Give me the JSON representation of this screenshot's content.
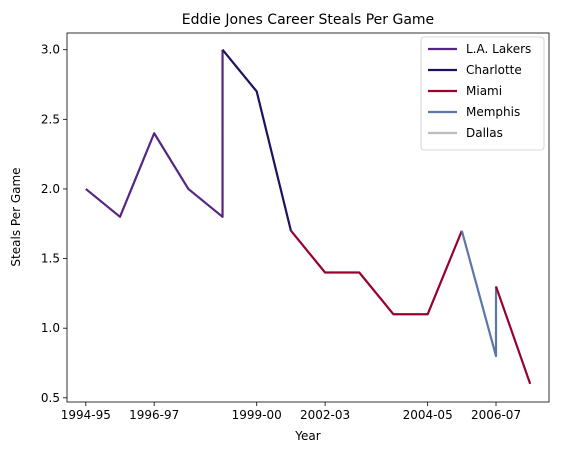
{
  "chart_data": {
    "type": "line",
    "title": "Eddie Jones  Career Steals Per Game",
    "xlabel": "Year",
    "ylabel": "Steals Per Game",
    "xlim": [
      -0.55,
      13.55
    ],
    "ylim": [
      0.47,
      3.12
    ],
    "x_ticks": [
      {
        "pos": 0,
        "label": "1994-95"
      },
      {
        "pos": 2,
        "label": "1996-97"
      },
      {
        "pos": 5,
        "label": "1999-00"
      },
      {
        "pos": 7,
        "label": "2002-03"
      },
      {
        "pos": 10,
        "label": "2004-05"
      },
      {
        "pos": 12,
        "label": "2006-07"
      }
    ],
    "y_ticks": [
      {
        "value": 0.5,
        "label": "0.5"
      },
      {
        "value": 1.0,
        "label": "1.0"
      },
      {
        "value": 1.5,
        "label": "1.5"
      },
      {
        "value": 2.0,
        "label": "2.0"
      },
      {
        "value": 2.5,
        "label": "2.5"
      },
      {
        "value": 3.0,
        "label": "3.0"
      }
    ],
    "grid": false,
    "legend_position": "top-right",
    "series": [
      {
        "name": "L.A. Lakers",
        "color": "#552583",
        "points": [
          [
            0,
            2.0
          ],
          [
            1,
            1.8
          ],
          [
            2,
            2.4
          ],
          [
            3,
            2.0
          ],
          [
            4,
            1.8
          ],
          [
            4,
            3.0
          ]
        ]
      },
      {
        "name": "Charlotte",
        "color": "#1d1160",
        "points": [
          [
            4,
            3.0
          ],
          [
            5,
            2.7
          ],
          [
            6,
            1.7
          ]
        ]
      },
      {
        "name": "Miami",
        "color": "#98002e",
        "points": [
          [
            6,
            1.7
          ],
          [
            7,
            1.4
          ],
          [
            8,
            1.4
          ],
          [
            9,
            1.1
          ],
          [
            10,
            1.1
          ],
          [
            11,
            1.7
          ]
        ]
      },
      {
        "name": "Memphis",
        "color": "#5d76a9",
        "points": [
          [
            11,
            1.7
          ],
          [
            12,
            0.8
          ],
          [
            12,
            1.3
          ]
        ]
      },
      {
        "name": "Miami",
        "color": "#98002e",
        "points": [
          [
            12,
            1.3
          ],
          [
            13,
            0.6
          ]
        ],
        "in_legend": false
      },
      {
        "name": "Dallas",
        "color": "#bbbbbb",
        "points": [],
        "in_legend": true
      }
    ]
  }
}
